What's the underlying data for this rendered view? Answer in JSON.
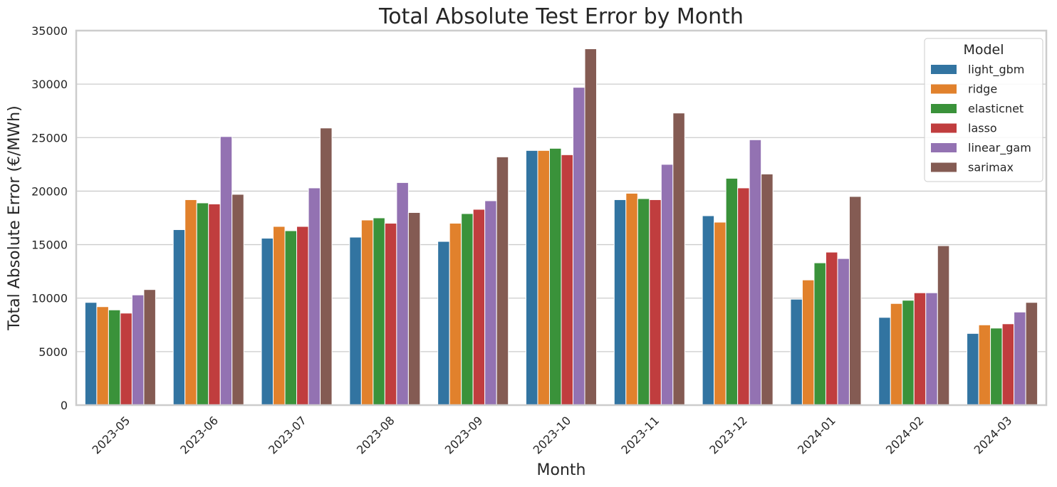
{
  "chart_data": {
    "type": "bar",
    "title": "Total Absolute Test Error by Month",
    "xlabel": "Month",
    "ylabel": "Total Absolute Error (€/MWh)",
    "ylim": [
      0,
      35000
    ],
    "yticks": [
      0,
      5000,
      10000,
      15000,
      20000,
      25000,
      30000,
      35000
    ],
    "grid": "horizontal",
    "legend_title": "Model",
    "legend_position": "top-right",
    "categories": [
      "2023-05",
      "2023-06",
      "2023-07",
      "2023-08",
      "2023-09",
      "2023-10",
      "2023-11",
      "2023-12",
      "2024-01",
      "2024-02",
      "2024-03"
    ],
    "series": [
      {
        "name": "light_gbm",
        "color": "#3274a1",
        "values": [
          9600,
          16400,
          15600,
          15700,
          15300,
          23800,
          19200,
          17700,
          9900,
          8200,
          6700
        ]
      },
      {
        "name": "ridge",
        "color": "#e1812c",
        "values": [
          9200,
          19200,
          16700,
          17300,
          17000,
          23800,
          19800,
          17100,
          11700,
          9500,
          7500
        ]
      },
      {
        "name": "elasticnet",
        "color": "#3a923a",
        "values": [
          8900,
          18900,
          16300,
          17500,
          17900,
          24000,
          19300,
          21200,
          13300,
          9800,
          7200
        ]
      },
      {
        "name": "lasso",
        "color": "#c03d3e",
        "values": [
          8600,
          18800,
          16700,
          17000,
          18300,
          23400,
          19200,
          20300,
          14300,
          10500,
          7600
        ]
      },
      {
        "name": "linear_gam",
        "color": "#9372b2",
        "values": [
          10300,
          25100,
          20300,
          20800,
          19100,
          29700,
          22500,
          24800,
          13700,
          10500,
          8700
        ]
      },
      {
        "name": "sarimax",
        "color": "#845b53",
        "values": [
          10800,
          19700,
          25900,
          18000,
          23200,
          33300,
          27300,
          21600,
          19500,
          14900,
          9600
        ]
      }
    ]
  }
}
